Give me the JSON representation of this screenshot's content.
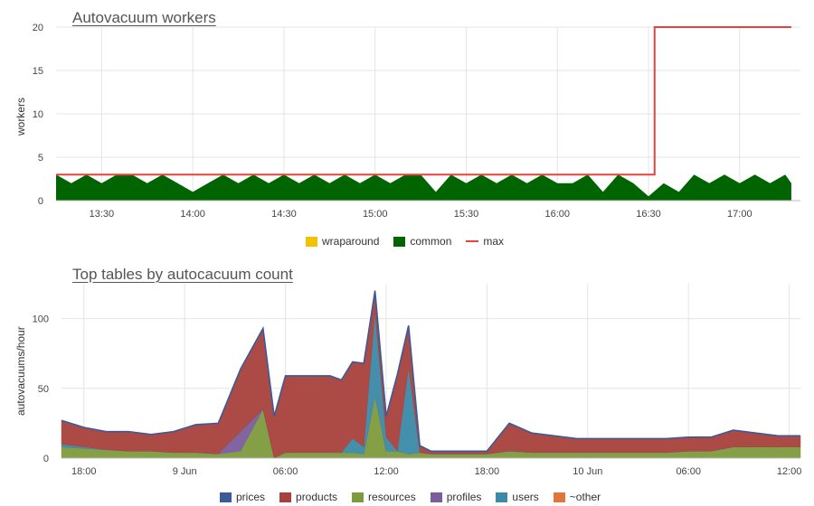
{
  "chart_data": [
    {
      "type": "area",
      "title": "Autovacuum workers",
      "xlabel": "",
      "ylabel": "workers",
      "ylim": [
        0,
        20
      ],
      "yticks": [
        0,
        5,
        10,
        15,
        20
      ],
      "xlim": [
        "13:15",
        "17:20"
      ],
      "xticks": [
        "13:30",
        "14:00",
        "14:30",
        "15:00",
        "15:30",
        "16:00",
        "16:30",
        "17:00"
      ],
      "grid": true,
      "legend_position": "bottom",
      "series": [
        {
          "name": "wraparound",
          "color": "#f2c200",
          "points": []
        },
        {
          "name": "common",
          "color": "#006400",
          "x": [
            "13:15",
            "13:20",
            "13:25",
            "13:30",
            "13:35",
            "13:40",
            "13:45",
            "13:50",
            "13:55",
            "14:00",
            "14:05",
            "14:10",
            "14:15",
            "14:20",
            "14:25",
            "14:30",
            "14:35",
            "14:40",
            "14:45",
            "14:50",
            "14:55",
            "15:00",
            "15:05",
            "15:10",
            "15:15",
            "15:20",
            "15:25",
            "15:30",
            "15:35",
            "15:40",
            "15:45",
            "15:50",
            "15:55",
            "16:00",
            "16:05",
            "16:10",
            "16:15",
            "16:20",
            "16:25",
            "16:30",
            "16:35",
            "16:40",
            "16:45",
            "16:50",
            "16:55",
            "17:00",
            "17:05",
            "17:10",
            "17:15",
            "17:17"
          ],
          "values": [
            3,
            2,
            3,
            2,
            3,
            3,
            2,
            3,
            2,
            1,
            2,
            3,
            2,
            3,
            2,
            3,
            2,
            3,
            2,
            3,
            2,
            3,
            2,
            3,
            3,
            1,
            3,
            2,
            3,
            2,
            3,
            2,
            3,
            2,
            2,
            3,
            1,
            3,
            2,
            0.5,
            2,
            1,
            3,
            2,
            3,
            2,
            3,
            2,
            3,
            2
          ]
        },
        {
          "name": "max",
          "color": "#e8423e",
          "x": [
            "13:15",
            "16:32",
            "16:32",
            "17:17"
          ],
          "values": [
            3,
            3,
            20,
            20
          ]
        }
      ]
    },
    {
      "type": "area",
      "title": "Top tables by autocacuum count",
      "xlabel": "",
      "ylabel": "autovacuums/hour",
      "ylim": [
        0,
        125
      ],
      "yticks": [
        0,
        50,
        100
      ],
      "xticks": [
        "18:00",
        "9 Jun",
        "06:00",
        "12:00",
        "18:00",
        "10 Jun",
        "06:00",
        "12:00"
      ],
      "grid": true,
      "legend_position": "bottom",
      "x_hours": [
        0,
        2,
        4,
        6,
        8,
        10,
        12,
        14,
        16,
        18,
        19,
        20,
        21,
        22,
        23,
        24,
        25,
        26,
        27,
        28,
        29,
        30,
        31,
        32,
        33,
        34,
        35,
        36,
        38,
        40,
        42,
        44,
        46,
        48,
        50,
        52,
        54,
        56,
        58,
        60,
        62,
        64,
        66
      ],
      "series": [
        {
          "name": "prices",
          "color": "#3a5a9a",
          "values": [
            0,
            0,
            0,
            0,
            0,
            0,
            0,
            0,
            0,
            0,
            0,
            0,
            0,
            0,
            0,
            0,
            0,
            0,
            0,
            0,
            0,
            0,
            0,
            0,
            0,
            0,
            0,
            0,
            0,
            0,
            0,
            0,
            0,
            0,
            0,
            0,
            0,
            0,
            0,
            0,
            0,
            0,
            0
          ]
        },
        {
          "name": "products",
          "color": "#a8413d",
          "values": [
            17,
            14,
            13,
            14,
            12,
            15,
            20,
            22,
            45,
            58,
            30,
            55,
            55,
            55,
            55,
            55,
            52,
            55,
            60,
            15,
            15,
            55,
            30,
            5,
            2,
            2,
            2,
            2,
            2,
            20,
            14,
            12,
            10,
            10,
            10,
            10,
            10,
            10,
            10,
            12,
            10,
            8,
            8
          ]
        },
        {
          "name": "resources",
          "color": "#7f9a3e",
          "values": [
            8,
            7,
            6,
            5,
            5,
            4,
            4,
            3,
            5,
            35,
            0,
            4,
            4,
            4,
            4,
            4,
            4,
            4,
            3,
            45,
            5,
            5,
            3,
            4,
            3,
            3,
            3,
            3,
            3,
            5,
            4,
            4,
            4,
            4,
            4,
            4,
            4,
            5,
            5,
            8,
            8,
            8,
            8
          ]
        },
        {
          "name": "profiles",
          "color": "#7b5c9e",
          "values": [
            0,
            0,
            0,
            0,
            0,
            0,
            0,
            0,
            14,
            0,
            0,
            0,
            0,
            0,
            0,
            0,
            0,
            0,
            0,
            0,
            0,
            0,
            0,
            0,
            0,
            0,
            0,
            0,
            0,
            0,
            0,
            0,
            0,
            0,
            0,
            0,
            0,
            0,
            0,
            0,
            0,
            0,
            0
          ]
        },
        {
          "name": "users",
          "color": "#3b8aa8",
          "values": [
            2,
            1,
            0,
            0,
            0,
            0,
            0,
            0,
            0,
            0,
            0,
            0,
            0,
            0,
            0,
            0,
            0,
            10,
            5,
            60,
            10,
            0,
            62,
            0,
            0,
            0,
            0,
            0,
            0,
            0,
            0,
            0,
            0,
            0,
            0,
            0,
            0,
            0,
            0,
            0,
            0,
            0,
            0
          ]
        },
        {
          "name": "~other",
          "color": "#e0763a",
          "values": []
        }
      ]
    }
  ]
}
